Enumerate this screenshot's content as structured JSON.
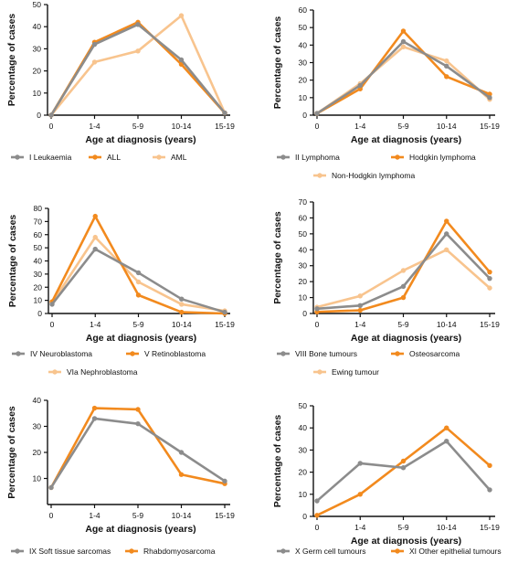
{
  "colors": {
    "grey": "#8c8c8c",
    "orange": "#f28a1e",
    "light_orange": "#f8c48e"
  },
  "chart_data": [
    {
      "type": "line",
      "categories": [
        "0",
        "1-4",
        "5-9",
        "10-14",
        "15-19"
      ],
      "ylabel": "Percentage of cases",
      "xlabel": "Age at diagnosis (years)",
      "ylim": [
        0,
        50
      ],
      "yticks": [
        0,
        10,
        20,
        30,
        40,
        50
      ],
      "legend": "bottom",
      "series": [
        {
          "name": "I Leukaemia",
          "color": "grey",
          "values": [
            0,
            32,
            41,
            25,
            1
          ]
        },
        {
          "name": "ALL",
          "color": "orange",
          "values": [
            0,
            33,
            42,
            23,
            1
          ]
        },
        {
          "name": "AML",
          "color": "light_orange",
          "values": [
            0,
            24,
            29,
            45,
            1
          ]
        }
      ]
    },
    {
      "type": "line",
      "categories": [
        "0",
        "1-4",
        "5-9",
        "10-14",
        "15-19"
      ],
      "ylabel": "Percentage of cases",
      "xlabel": "Age at diagnosis (years)",
      "ylim": [
        0,
        60
      ],
      "yticks": [
        0,
        10,
        20,
        30,
        40,
        50,
        60
      ],
      "legend": "bottom",
      "series": [
        {
          "name": "II Lymphoma",
          "color": "grey",
          "values": [
            1,
            17,
            42,
            28,
            10
          ]
        },
        {
          "name": "Hodgkin lymphoma",
          "color": "orange",
          "values": [
            1,
            15,
            48,
            22,
            12
          ]
        },
        {
          "name": "Non-Hodgkin lymphoma",
          "color": "light_orange",
          "values": [
            1,
            18,
            39,
            31,
            9
          ]
        }
      ]
    },
    {
      "type": "line",
      "categories": [
        "0",
        "1-4",
        "5-9",
        "10-14",
        "15-19"
      ],
      "ylabel": "Percentage of cases",
      "xlabel": "Age at diagnosis (years)",
      "ylim": [
        0,
        80
      ],
      "yticks": [
        0,
        10,
        20,
        30,
        40,
        50,
        60,
        70,
        80
      ],
      "legend": "bottom",
      "series": [
        {
          "name": "IV Neuroblastoma",
          "color": "grey",
          "values": [
            7,
            49,
            31,
            11,
            1
          ]
        },
        {
          "name": "V Retinoblastoma",
          "color": "orange",
          "values": [
            9,
            74,
            14,
            1,
            0
          ]
        },
        {
          "name": "VIa Nephroblastoma",
          "color": "light_orange",
          "values": [
            8,
            58,
            24,
            7,
            2
          ]
        }
      ]
    },
    {
      "type": "line",
      "categories": [
        "0",
        "1-4",
        "5-9",
        "10-14",
        "15-19"
      ],
      "ylabel": "Percentage of cases",
      "xlabel": "Age at diagnosis (years)",
      "ylim": [
        0,
        70
      ],
      "yticks": [
        0,
        10,
        20,
        30,
        40,
        50,
        60,
        70
      ],
      "legend": "bottom",
      "series": [
        {
          "name": "VIII Bone tumours",
          "color": "grey",
          "values": [
            3,
            5,
            17,
            50,
            22
          ]
        },
        {
          "name": "Osteosarcoma",
          "color": "orange",
          "values": [
            1,
            2,
            10,
            58,
            26
          ]
        },
        {
          "name": "Ewing tumour",
          "color": "light_orange",
          "values": [
            4,
            11,
            27,
            40,
            16
          ]
        }
      ]
    },
    {
      "type": "line",
      "categories": [
        "0",
        "1-4",
        "5-9",
        "10-14",
        "15-19"
      ],
      "ylabel": "Percentage of cases",
      "xlabel": "Age at diagnosis (years)",
      "ylim": [
        0,
        40
      ],
      "yticks": [
        10,
        20,
        30,
        40
      ],
      "legend": "bottom",
      "series": [
        {
          "name": "IX Soft tissue sarcomas",
          "color": "grey",
          "values": [
            6.5,
            33,
            31,
            20,
            9
          ]
        },
        {
          "name": "Rhabdomyosarcoma",
          "color": "orange",
          "values": [
            6.5,
            37,
            36.5,
            11.5,
            8
          ]
        }
      ]
    },
    {
      "type": "line",
      "categories": [
        "0",
        "1-4",
        "5-9",
        "10-14",
        "15-19"
      ],
      "ylabel": "Percentage of cases",
      "xlabel": "Age at diagnosis (years)",
      "ylim": [
        0,
        50
      ],
      "yticks": [
        0,
        10,
        20,
        30,
        40,
        50
      ],
      "legend": "bottom",
      "series": [
        {
          "name": "X Germ cell tumours",
          "color": "grey",
          "values": [
            7,
            24,
            22,
            34,
            12
          ]
        },
        {
          "name": "XI Other epithelial tumours",
          "color": "orange",
          "values": [
            0.5,
            10,
            25,
            40,
            23
          ]
        }
      ]
    }
  ]
}
